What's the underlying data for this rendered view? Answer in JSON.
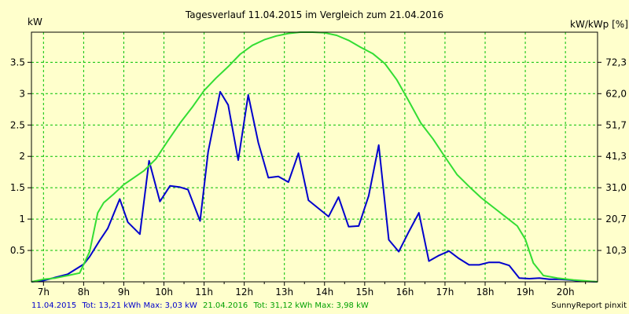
{
  "chart_data": {
    "type": "line",
    "title": "Tagesverlauf 11.04.2015 im Vergleich zum 21.04.2016",
    "ylabel_left": "kW",
    "ylabel_right": "kW/kWp [%]",
    "x_ticks": [
      "7h",
      "8h",
      "9h",
      "10h",
      "11h",
      "12h",
      "13h",
      "14h",
      "15h",
      "16h",
      "17h",
      "18h",
      "19h",
      "20h"
    ],
    "xlim": [
      6.7,
      20.8
    ],
    "ylim": [
      0,
      3.98
    ],
    "y_ticks_left": [
      "0.5",
      "1",
      "1.5",
      "2",
      "2.5",
      "3",
      "3.5"
    ],
    "y_ticks_right": [
      "10,3",
      "20,7",
      "31,0",
      "41,3",
      "51,7",
      "62,0",
      "72,3"
    ],
    "grid": true,
    "colors": {
      "background": "#FFFFCC",
      "plot": "#FFFFCC",
      "grid": "#00C000",
      "series_2015": "#0000CC",
      "series_2016": "#33DD33"
    },
    "series": [
      {
        "name": "11.04.2015",
        "color": "#0000CC",
        "x": [
          6.7,
          7.0,
          7.3,
          7.6,
          7.8,
          8.0,
          8.15,
          8.4,
          8.6,
          8.9,
          9.1,
          9.4,
          9.63,
          9.9,
          10.15,
          10.4,
          10.6,
          10.9,
          11.1,
          11.4,
          11.6,
          11.85,
          12.1,
          12.35,
          12.6,
          12.85,
          13.1,
          13.35,
          13.6,
          13.85,
          14.1,
          14.35,
          14.6,
          14.85,
          15.1,
          15.35,
          15.6,
          15.85,
          16.1,
          16.35,
          16.6,
          16.85,
          17.1,
          17.35,
          17.6,
          17.85,
          18.1,
          18.35,
          18.6,
          18.85,
          19.1,
          19.35,
          19.6,
          19.85,
          20.1,
          20.4,
          20.8
        ],
        "values": [
          0,
          0.02,
          0.07,
          0.12,
          0.2,
          0.28,
          0.4,
          0.66,
          0.85,
          1.32,
          0.95,
          0.76,
          1.93,
          1.28,
          1.53,
          1.51,
          1.47,
          0.97,
          2.07,
          3.03,
          2.82,
          1.94,
          2.98,
          2.22,
          1.66,
          1.68,
          1.59,
          2.05,
          1.3,
          1.17,
          1.04,
          1.35,
          0.88,
          0.89,
          1.37,
          2.18,
          0.67,
          0.48,
          0.8,
          1.1,
          0.33,
          0.42,
          0.49,
          0.37,
          0.27,
          0.27,
          0.31,
          0.31,
          0.26,
          0.06,
          0.05,
          0.06,
          0.04,
          0.04,
          0.03,
          0.01,
          0
        ]
      },
      {
        "name": "21.04.2016",
        "color": "#33DD33",
        "x": [
          6.7,
          7.0,
          7.3,
          7.6,
          7.9,
          8.15,
          8.35,
          8.5,
          8.75,
          9.0,
          9.25,
          9.5,
          9.8,
          10.1,
          10.4,
          10.7,
          11.0,
          11.3,
          11.6,
          11.9,
          12.2,
          12.5,
          12.8,
          13.1,
          13.4,
          13.7,
          14.0,
          14.3,
          14.6,
          14.9,
          15.2,
          15.5,
          15.8,
          16.1,
          16.4,
          16.7,
          17.0,
          17.3,
          17.6,
          17.9,
          18.2,
          18.5,
          18.8,
          19.0,
          19.2,
          19.45,
          19.8,
          20.2,
          20.8
        ],
        "values": [
          0,
          0.04,
          0.06,
          0.1,
          0.14,
          0.48,
          1.1,
          1.26,
          1.4,
          1.55,
          1.66,
          1.77,
          1.96,
          2.25,
          2.53,
          2.78,
          3.05,
          3.25,
          3.43,
          3.63,
          3.77,
          3.86,
          3.92,
          3.96,
          3.98,
          3.98,
          3.97,
          3.93,
          3.85,
          3.74,
          3.64,
          3.48,
          3.22,
          2.88,
          2.53,
          2.28,
          1.99,
          1.71,
          1.52,
          1.34,
          1.19,
          1.04,
          0.89,
          0.68,
          0.3,
          0.1,
          0.06,
          0.03,
          0
        ]
      }
    ],
    "legend": {
      "date_2015": "11.04.2015",
      "text_2015": "Tot: 13,21 kWh Max: 3,03 kW",
      "date_2016": "21.04.2016",
      "text_2016": "Tot: 31,12 kWh Max: 3,98 kW",
      "placement": "bottom-left"
    },
    "credit": "SunnyReport pinxit"
  }
}
